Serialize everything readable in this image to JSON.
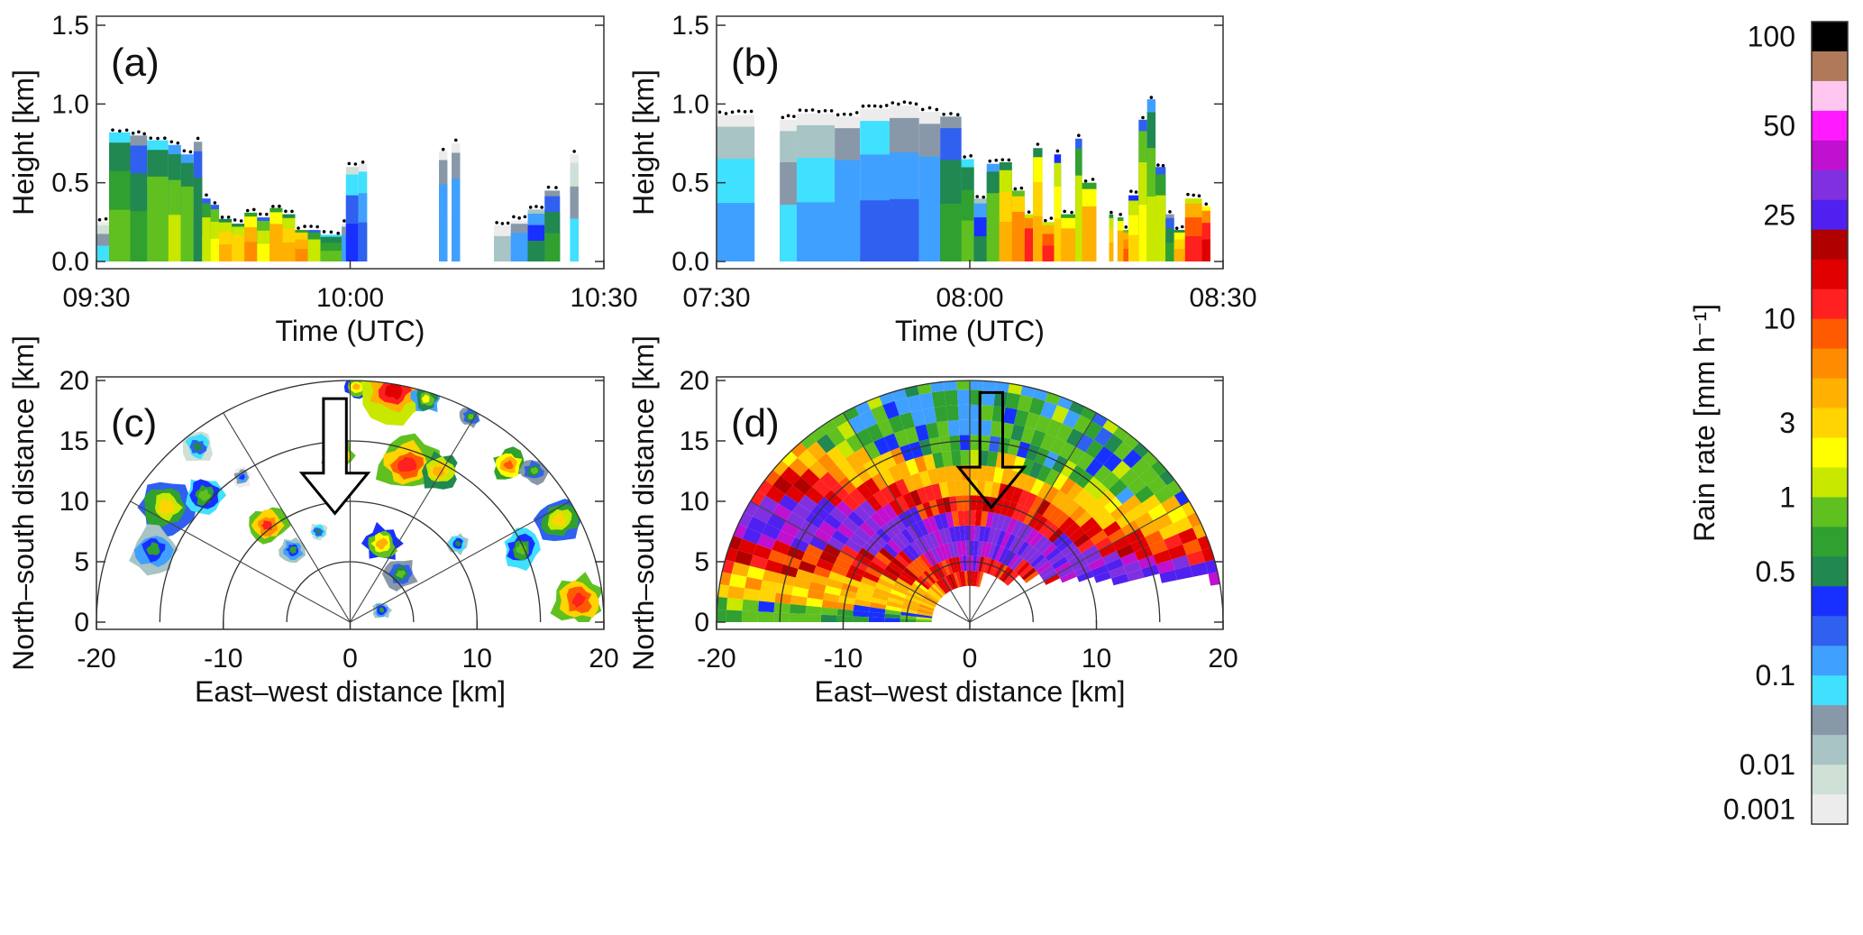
{
  "chart_data": [
    {
      "panel": "(a)",
      "type": "heatmap",
      "xlabel": "Time (UTC)",
      "ylabel": "Height [km]",
      "xticks": [
        "09:30",
        "10:00",
        "10:30"
      ],
      "yticks": [
        "0.0",
        "0.5",
        "1.0",
        "1.5"
      ],
      "ylim": [
        0,
        1.5
      ],
      "xlim_minutes": [
        0,
        60
      ],
      "segments": [
        {
          "t0": 0,
          "t1": 1.5,
          "top": 0.25,
          "rain": 0.005
        },
        {
          "t0": 1.5,
          "t1": 4.0,
          "top": 0.82,
          "rain": 0.08
        },
        {
          "t0": 4.0,
          "t1": 6.0,
          "top": 0.8,
          "rain": 0.05
        },
        {
          "t0": 6.0,
          "t1": 8.5,
          "top": 0.77,
          "rain": 0.09
        },
        {
          "t0": 8.5,
          "t1": 10.0,
          "top": 0.74,
          "rain": 0.12
        },
        {
          "t0": 10.0,
          "t1": 11.5,
          "top": 0.68,
          "rain": 0.1
        },
        {
          "t0": 11.5,
          "t1": 12.5,
          "top": 0.76,
          "rain": 0.04
        },
        {
          "t0": 12.5,
          "t1": 13.5,
          "top": 0.4,
          "rain": 0.15
        },
        {
          "t0": 13.5,
          "t1": 14.5,
          "top": 0.36,
          "rain": 0.2
        },
        {
          "t0": 14.5,
          "t1": 16.0,
          "top": 0.27,
          "rain": 0.45
        },
        {
          "t0": 16.0,
          "t1": 17.5,
          "top": 0.24,
          "rain": 0.35
        },
        {
          "t0": 17.5,
          "t1": 19.0,
          "top": 0.31,
          "rain": 0.7
        },
        {
          "t0": 19.0,
          "t1": 20.5,
          "top": 0.28,
          "rain": 0.2
        },
        {
          "t0": 20.5,
          "t1": 22.0,
          "top": 0.34,
          "rain": 0.55
        },
        {
          "t0": 22.0,
          "t1": 23.5,
          "top": 0.3,
          "rain": 0.4
        },
        {
          "t0": 23.5,
          "t1": 25.0,
          "top": 0.2,
          "rain": 0.8
        },
        {
          "t0": 25.0,
          "t1": 26.5,
          "top": 0.2,
          "rain": 0.15
        },
        {
          "t0": 26.5,
          "t1": 29.0,
          "top": 0.17,
          "rain": 0.08
        },
        {
          "t0": 29.0,
          "t1": 30.2,
          "top": 0.24,
          "rain": 0.01
        },
        {
          "t0": 29.5,
          "t1": 31.0,
          "top": 0.6,
          "rain": 0.02
        },
        {
          "t0": 31.0,
          "t1": 32.0,
          "top": 0.62,
          "rain": 0.015
        },
        {
          "t0": 40.5,
          "t1": 41.5,
          "top": 0.7,
          "rain": 0.01
        },
        {
          "t0": 42.0,
          "t1": 43.0,
          "top": 0.75,
          "rain": 0.01
        },
        {
          "t0": 47.0,
          "t1": 49.0,
          "top": 0.23,
          "rain": 0.003
        },
        {
          "t0": 49.0,
          "t1": 51.0,
          "top": 0.26,
          "rain": 0.01
        },
        {
          "t0": 51.0,
          "t1": 53.0,
          "top": 0.33,
          "rain": 0.03
        },
        {
          "t0": 53.0,
          "t1": 54.8,
          "top": 0.45,
          "rain": 0.05
        },
        {
          "t0": 56.0,
          "t1": 57.0,
          "top": 0.68,
          "rain": 0.005
        }
      ]
    },
    {
      "panel": "(b)",
      "type": "heatmap",
      "xlabel": "Time (UTC)",
      "ylabel": "Height [km]",
      "xticks": [
        "07:30",
        "08:00",
        "08:30"
      ],
      "yticks": [
        "0.0",
        "0.5",
        "1.0",
        "1.5"
      ],
      "ylim": [
        0,
        1.5
      ],
      "xlim_minutes": [
        0,
        60
      ],
      "segments": [
        {
          "t0": 0,
          "t1": 4.5,
          "top": 0.93,
          "rain": 0.008
        },
        {
          "t0": 7.5,
          "t1": 9.5,
          "top": 0.9,
          "rain": 0.006
        },
        {
          "t0": 9.5,
          "t1": 14.0,
          "top": 0.94,
          "rain": 0.008
        },
        {
          "t0": 14.0,
          "t1": 17.0,
          "top": 0.92,
          "rain": 0.01
        },
        {
          "t0": 17.0,
          "t1": 20.5,
          "top": 0.97,
          "rain": 0.015
        },
        {
          "t0": 20.5,
          "t1": 24.0,
          "top": 0.99,
          "rain": 0.012
        },
        {
          "t0": 24.0,
          "t1": 26.5,
          "top": 0.95,
          "rain": 0.01
        },
        {
          "t0": 26.5,
          "t1": 29.0,
          "top": 0.92,
          "rain": 0.05
        },
        {
          "t0": 29.0,
          "t1": 30.5,
          "top": 0.65,
          "rain": 0.08
        },
        {
          "t0": 30.5,
          "t1": 32.0,
          "top": 0.4,
          "rain": 0.03
        },
        {
          "t0": 32.0,
          "t1": 33.5,
          "top": 0.62,
          "rain": 0.1
        },
        {
          "t0": 33.5,
          "t1": 35.0,
          "top": 0.63,
          "rain": 0.4
        },
        {
          "t0": 35.0,
          "t1": 36.5,
          "top": 0.45,
          "rain": 0.9
        },
        {
          "t0": 36.5,
          "t1": 37.5,
          "top": 0.3,
          "rain": 2.0
        },
        {
          "t0": 37.5,
          "t1": 38.6,
          "top": 0.72,
          "rain": 0.5
        },
        {
          "t0": 38.6,
          "t1": 40.0,
          "top": 0.25,
          "rain": 1.5
        },
        {
          "t0": 40.0,
          "t1": 40.8,
          "top": 0.68,
          "rain": 0.3
        },
        {
          "t0": 40.8,
          "t1": 42.5,
          "top": 0.3,
          "rain": 0.6
        },
        {
          "t0": 42.5,
          "t1": 43.3,
          "top": 0.78,
          "rain": 0.15
        },
        {
          "t0": 43.3,
          "t1": 45.0,
          "top": 0.5,
          "rain": 0.55
        },
        {
          "t0": 46.5,
          "t1": 47.0,
          "top": 0.3,
          "rain": 0.4
        },
        {
          "t0": 47.5,
          "t1": 48.2,
          "top": 0.28,
          "rain": 0.6
        },
        {
          "t0": 48.2,
          "t1": 48.8,
          "top": 0.2,
          "rain": 1.2
        },
        {
          "t0": 48.8,
          "t1": 50.0,
          "top": 0.42,
          "rain": 0.3
        },
        {
          "t0": 50.0,
          "t1": 51.0,
          "top": 0.9,
          "rain": 0.2
        },
        {
          "t0": 51.0,
          "t1": 52.0,
          "top": 1.03,
          "rain": 0.12
        },
        {
          "t0": 52.0,
          "t1": 53.2,
          "top": 0.6,
          "rain": 0.15
        },
        {
          "t0": 53.2,
          "t1": 54.2,
          "top": 0.3,
          "rain": 0.05
        },
        {
          "t0": 54.2,
          "t1": 55.5,
          "top": 0.2,
          "rain": 0.5
        },
        {
          "t0": 55.5,
          "t1": 57.5,
          "top": 0.4,
          "rain": 1.5
        },
        {
          "t0": 57.5,
          "t1": 58.5,
          "top": 0.35,
          "rain": 2.5
        }
      ]
    },
    {
      "panel": "(c)",
      "type": "heatmap",
      "xlabel": "East–west distance [km]",
      "ylabel": "North–south distance [km]",
      "xticks": [
        "-20",
        "-10",
        "0",
        "10",
        "20"
      ],
      "yticks": [
        "0",
        "5",
        "10",
        "15",
        "20"
      ],
      "xlim": [
        -20,
        20
      ],
      "ylim": [
        0,
        20
      ],
      "arrow": {
        "x": -1.2,
        "y_tail": 18.5,
        "y_head": 9.0
      },
      "cells": [
        {
          "x": -14.5,
          "y": 9.5,
          "r": 2.2,
          "rain": 0.3
        },
        {
          "x": -11.5,
          "y": 10.5,
          "r": 1.5,
          "rain": 0.1
        },
        {
          "x": -15.5,
          "y": 6.0,
          "r": 1.8,
          "rain": 0.05
        },
        {
          "x": -12.0,
          "y": 14.5,
          "r": 1.2,
          "rain": 0.03
        },
        {
          "x": -8.5,
          "y": 12.0,
          "r": 0.8,
          "rain": 0.02
        },
        {
          "x": -6.5,
          "y": 8.0,
          "r": 1.5,
          "rain": 1.5
        },
        {
          "x": -4.5,
          "y": 6.0,
          "r": 1.0,
          "rain": 0.05
        },
        {
          "x": -2.5,
          "y": 7.5,
          "r": 0.7,
          "rain": 0.03
        },
        {
          "x": -1.0,
          "y": 13.8,
          "r": 1.3,
          "rain": 1.5
        },
        {
          "x": 0.5,
          "y": 19.5,
          "r": 1.0,
          "rain": 0.4
        },
        {
          "x": 3.5,
          "y": 19.2,
          "r": 2.5,
          "rain": 3.0
        },
        {
          "x": 6.0,
          "y": 18.5,
          "r": 1.2,
          "rain": 0.2
        },
        {
          "x": 4.5,
          "y": 13.0,
          "r": 2.3,
          "rain": 2.0
        },
        {
          "x": 7.0,
          "y": 12.5,
          "r": 1.5,
          "rain": 0.6
        },
        {
          "x": 9.5,
          "y": 17.0,
          "r": 0.8,
          "rain": 0.08
        },
        {
          "x": 12.5,
          "y": 13.0,
          "r": 1.3,
          "rain": 1.0
        },
        {
          "x": 14.5,
          "y": 12.5,
          "r": 1.0,
          "rain": 0.08
        },
        {
          "x": 16.5,
          "y": 8.5,
          "r": 1.8,
          "rain": 0.3
        },
        {
          "x": 13.5,
          "y": 6.0,
          "r": 1.5,
          "rain": 0.1
        },
        {
          "x": 18.0,
          "y": 1.8,
          "r": 2.0,
          "rain": 2.0
        },
        {
          "x": 2.5,
          "y": 6.5,
          "r": 1.5,
          "rain": 0.5
        },
        {
          "x": 4.0,
          "y": 4.0,
          "r": 1.2,
          "rain": 0.08
        },
        {
          "x": 8.5,
          "y": 6.5,
          "r": 0.8,
          "rain": 0.04
        },
        {
          "x": 2.5,
          "y": 1.0,
          "r": 0.7,
          "rain": 0.05
        }
      ]
    },
    {
      "panel": "(d)",
      "type": "heatmap",
      "xlabel": "East–west distance [km]",
      "ylabel": "North–south distance [km]",
      "xticks": [
        "-20",
        "-10",
        "0",
        "10",
        "20"
      ],
      "yticks": [
        "0",
        "5",
        "10",
        "15",
        "20"
      ],
      "xlim": [
        -20,
        20
      ],
      "ylim": [
        0,
        20
      ],
      "arrow": {
        "x": 1.7,
        "y_tail": 19.0,
        "y_head": 9.5
      },
      "band": [
        [
          -19,
          8.5
        ],
        [
          -15,
          8.2
        ],
        [
          -10,
          7.8
        ],
        [
          -6,
          7.5
        ],
        [
          -2,
          6.8
        ],
        [
          0,
          6.5
        ],
        [
          3,
          7.0
        ],
        [
          6,
          5.5
        ],
        [
          9,
          4.5
        ],
        [
          12,
          3.8
        ],
        [
          15,
          3.5
        ],
        [
          19,
          3.0
        ]
      ]
    }
  ],
  "colorbar": {
    "label": "Rain rate [mm h⁻¹]",
    "tick_labels": [
      "100",
      "50",
      "25",
      "10",
      "3",
      "1",
      "0.5",
      "0.1",
      "0.01",
      "0.001"
    ],
    "colors": [
      "#000000",
      "#b07a5a",
      "#ffc6f0",
      "#ff1aff",
      "#c010d0",
      "#8030e0",
      "#5020f0",
      "#b00000",
      "#e00000",
      "#ff2020",
      "#ff5a00",
      "#ff8c00",
      "#ffb000",
      "#ffd400",
      "#ffff00",
      "#c8e800",
      "#60c020",
      "#30a030",
      "#208850",
      "#1830ff",
      "#3060f0",
      "#40a0ff",
      "#40e0ff",
      "#8898a8",
      "#a8c4c4",
      "#cfe0d6",
      "#ececec"
    ]
  }
}
